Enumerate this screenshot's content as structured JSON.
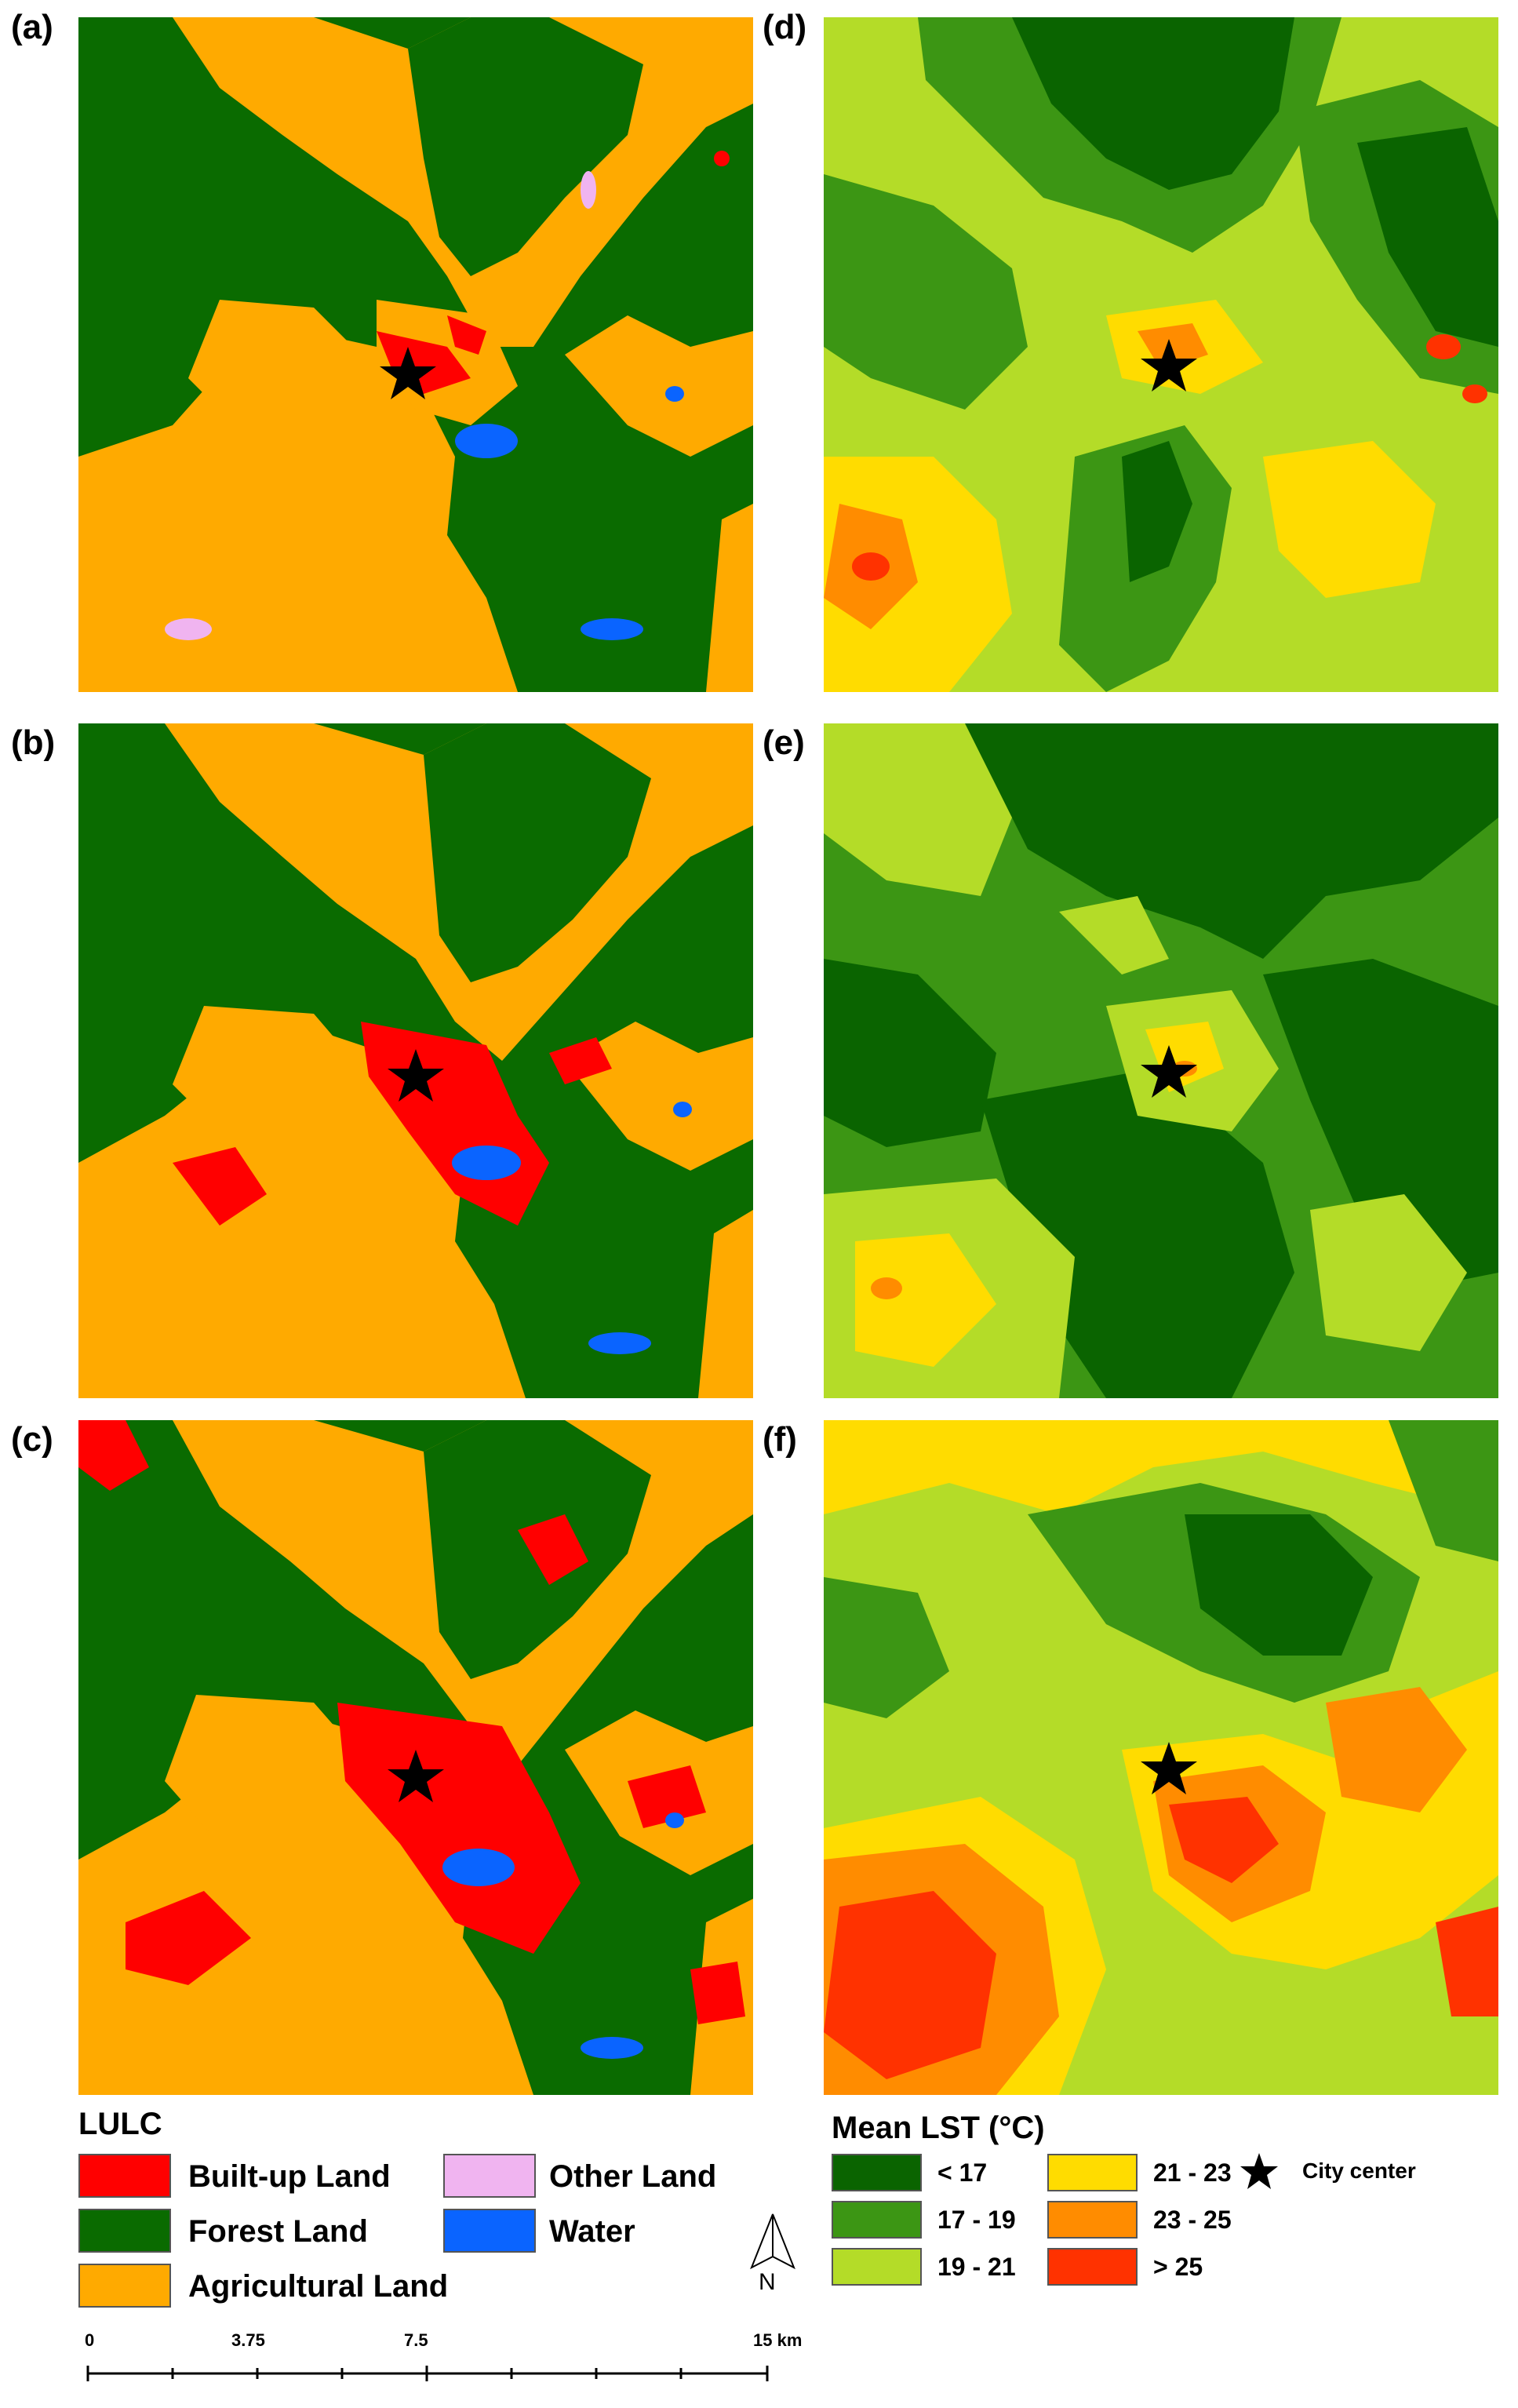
{
  "panels": {
    "a": "(a)",
    "b": "(b)",
    "c": "(c)",
    "d": "(d)",
    "e": "(e)",
    "f": "(f)"
  },
  "lulc_legend": {
    "title": "LULC",
    "items": [
      {
        "label": "Built-up Land",
        "color": "#ff0000"
      },
      {
        "label": "Forest Land",
        "color": "#0a6b00"
      },
      {
        "label": "Agricultural Land",
        "color": "#ffaa00"
      },
      {
        "label": "Other Land",
        "color": "#f0b4f0"
      },
      {
        "label": "Water",
        "color": "#0a64ff"
      }
    ]
  },
  "lst_legend": {
    "title": "Mean LST (°C)",
    "items": [
      {
        "label": "< 17",
        "color": "#0a6400"
      },
      {
        "label": "17 - 19",
        "color": "#3c9614"
      },
      {
        "label": "19 - 21",
        "color": "#b4dc28"
      },
      {
        "label": "21 - 23",
        "color": "#ffdc00"
      },
      {
        "label": "23 - 25",
        "color": "#ff8c00"
      },
      {
        "label": "> 25",
        "color": "#ff3200"
      }
    ],
    "city_center": "City center"
  },
  "north_arrow": {
    "label": "N"
  },
  "scale_bar": {
    "ticks": [
      "0",
      "3.75",
      "7.5",
      "15 km"
    ]
  }
}
